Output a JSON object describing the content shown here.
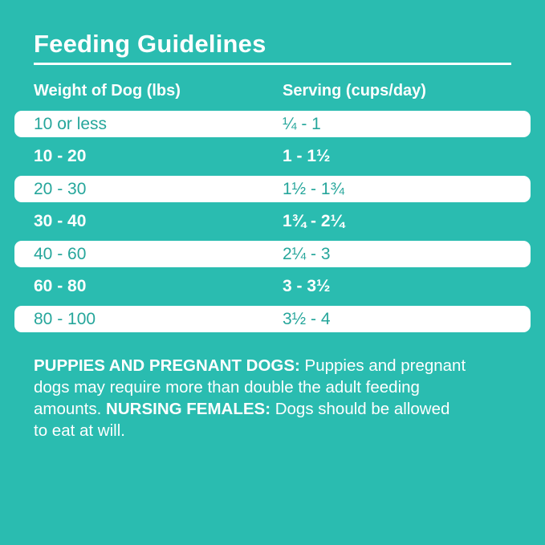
{
  "header": {
    "title": "Feeding Guidelines"
  },
  "table": {
    "columns": [
      "Weight of Dog (lbs)",
      "Serving (cups/day)"
    ],
    "rows": [
      {
        "weight": "10 or less",
        "serving": "¼ - 1"
      },
      {
        "weight": "10 - 20",
        "serving": "1 - 1½"
      },
      {
        "weight": "20 - 30",
        "serving": "1½ - 1¾"
      },
      {
        "weight": "30 - 40",
        "serving": "1¾ - 2¼"
      },
      {
        "weight": "40 - 60",
        "serving": "2¼ - 3"
      },
      {
        "weight": "60 - 80",
        "serving": "3 - 3½"
      },
      {
        "weight": "80 - 100",
        "serving": "3½ - 4"
      }
    ]
  },
  "footnote": {
    "line1_bold": "PUPPIES AND PREGNANT DOGS:",
    "line1_text": " Puppies and pregnant",
    "line2_text": "dogs may require more than double the adult feeding",
    "line3_text_a": "amounts. ",
    "line3_bold": "NURSING FEMALES:",
    "line3_text_b": " Dogs should be allowed",
    "line4_text": "to eat at will."
  },
  "colors": {
    "background_teal": "#2abcb0",
    "row_text_teal": "#26a69b",
    "text_white": "#ffffff"
  }
}
